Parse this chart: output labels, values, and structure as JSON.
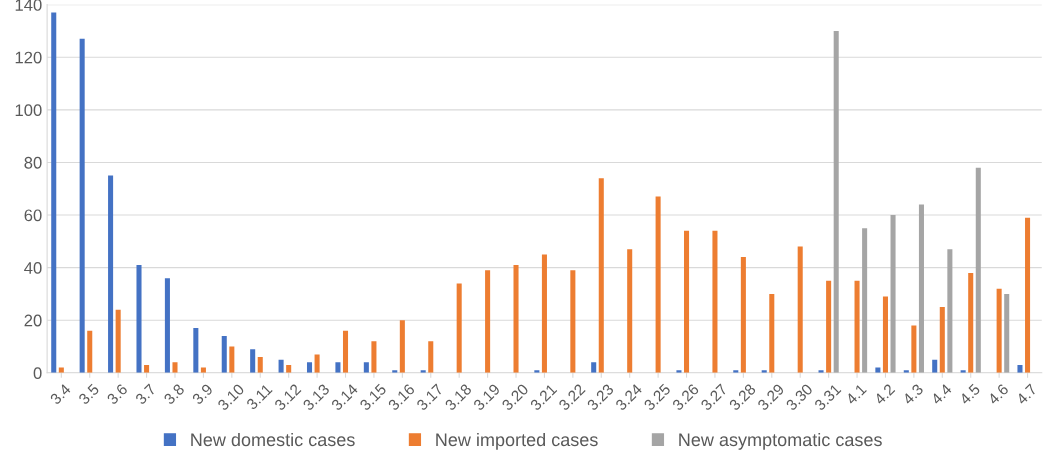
{
  "chart_data": {
    "type": "bar",
    "categories": [
      "3.4",
      "3.5",
      "3.6",
      "3.7",
      "3.8",
      "3.9",
      "3.10",
      "3.11",
      "3.12",
      "3.13",
      "3.14",
      "3.15",
      "3.16",
      "3.17",
      "3.18",
      "3.19",
      "3.20",
      "3.21",
      "3.22",
      "3.23",
      "3.24",
      "3.25",
      "3.26",
      "3.27",
      "3.28",
      "3.29",
      "3.30",
      "3.31",
      "4.1",
      "4.2",
      "4.3",
      "4.4",
      "4.5",
      "4.6",
      "4.7"
    ],
    "series": [
      {
        "name": "New domestic cases",
        "color": "#4472c4",
        "values": [
          137,
          127,
          75,
          41,
          36,
          17,
          14,
          9,
          5,
          4,
          4,
          4,
          1,
          1,
          0,
          0,
          0,
          1,
          0,
          4,
          0,
          0,
          1,
          0,
          1,
          1,
          0,
          1,
          0,
          2,
          1,
          5,
          1,
          0,
          3
        ]
      },
      {
        "name": "New imported cases",
        "color": "#ed7d31",
        "values": [
          2,
          16,
          24,
          3,
          4,
          2,
          10,
          6,
          3,
          7,
          16,
          12,
          20,
          12,
          34,
          39,
          41,
          45,
          39,
          74,
          47,
          67,
          54,
          54,
          44,
          30,
          48,
          35,
          35,
          29,
          18,
          25,
          38,
          32,
          59
        ]
      },
      {
        "name": "New asymptomatic cases",
        "color": "#a5a5a5",
        "values": [
          null,
          null,
          null,
          null,
          null,
          null,
          null,
          null,
          null,
          null,
          null,
          null,
          null,
          null,
          null,
          null,
          null,
          null,
          null,
          null,
          null,
          null,
          null,
          null,
          null,
          null,
          null,
          130,
          55,
          60,
          64,
          47,
          78,
          30,
          null
        ]
      }
    ],
    "ylim": [
      0,
      140
    ],
    "yticks": [
      0,
      20,
      40,
      60,
      80,
      100,
      120,
      140
    ],
    "grid": "y",
    "legend": "bottom"
  }
}
